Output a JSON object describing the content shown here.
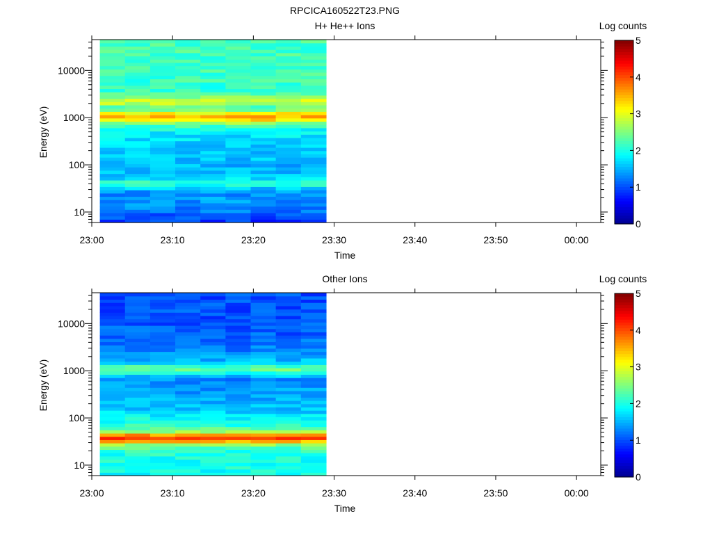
{
  "page_title": "RPCICA160522T23.PNG",
  "colors": {
    "colormap": [
      "#00008f",
      "#0000ff",
      "#007fff",
      "#00ffff",
      "#7fff7f",
      "#ffff00",
      "#ff7f00",
      "#ff0000",
      "#7f0000"
    ],
    "axis": "#000000",
    "background": "#ffffff"
  },
  "chart_data": [
    {
      "type": "heatmap",
      "title": "H+ He++ Ions",
      "xlabel": "Time",
      "ylabel": "Energy (eV)",
      "y_scale": "log",
      "ylim": [
        6,
        45000
      ],
      "x_ticks": [
        "23:00",
        "23:10",
        "23:20",
        "23:30",
        "23:40",
        "23:50",
        "00:00"
      ],
      "xlim_minutes": [
        0,
        63
      ],
      "y_ticks": [
        {
          "value": 10,
          "label": "10"
        },
        {
          "value": 100,
          "label": "100"
        },
        {
          "value": 1000,
          "label": "1000"
        },
        {
          "value": 10000,
          "label": "10000"
        }
      ],
      "colorbar": {
        "label": "Log counts",
        "range": [
          0,
          5
        ],
        "ticks": [
          "0",
          "1",
          "2",
          "3",
          "4",
          "5"
        ]
      },
      "data_time_range_minutes": [
        1,
        29
      ],
      "time_bins": 9,
      "energy_profile": [
        {
          "energy": 7,
          "value": 0.9
        },
        {
          "energy": 10,
          "value": 1.2
        },
        {
          "energy": 14,
          "value": 1.3
        },
        {
          "energy": 20,
          "value": 1.4
        },
        {
          "energy": 25,
          "value": 1.3
        },
        {
          "energy": 30,
          "value": 1.5
        },
        {
          "energy": 38,
          "value": 2.0
        },
        {
          "energy": 42,
          "value": 2.2
        },
        {
          "energy": 48,
          "value": 1.8
        },
        {
          "energy": 60,
          "value": 1.6
        },
        {
          "energy": 90,
          "value": 1.5
        },
        {
          "energy": 140,
          "value": 1.6
        },
        {
          "energy": 200,
          "value": 1.6
        },
        {
          "energy": 300,
          "value": 1.7
        },
        {
          "energy": 500,
          "value": 1.8
        },
        {
          "energy": 700,
          "value": 2.2
        },
        {
          "energy": 850,
          "value": 3.0
        },
        {
          "energy": 1000,
          "value": 3.6
        },
        {
          "energy": 1200,
          "value": 3.3
        },
        {
          "energy": 1500,
          "value": 2.4
        },
        {
          "energy": 1800,
          "value": 2.3
        },
        {
          "energy": 2200,
          "value": 3.1
        },
        {
          "energy": 2700,
          "value": 2.5
        },
        {
          "energy": 4000,
          "value": 2.1
        },
        {
          "energy": 10000,
          "value": 2.2
        },
        {
          "energy": 30000,
          "value": 2.2
        },
        {
          "energy": 45000,
          "value": 2.2
        }
      ]
    },
    {
      "type": "heatmap",
      "title": "Other Ions",
      "xlabel": "Time",
      "ylabel": "Energy (eV)",
      "y_scale": "log",
      "ylim": [
        6,
        45000
      ],
      "x_ticks": [
        "23:00",
        "23:10",
        "23:20",
        "23:30",
        "23:40",
        "23:50",
        "00:00"
      ],
      "xlim_minutes": [
        0,
        63
      ],
      "y_ticks": [
        {
          "value": 10,
          "label": "10"
        },
        {
          "value": 100,
          "label": "100"
        },
        {
          "value": 1000,
          "label": "1000"
        },
        {
          "value": 10000,
          "label": "10000"
        }
      ],
      "colorbar": {
        "label": "Log counts",
        "range": [
          0,
          5
        ],
        "ticks": [
          "0",
          "1",
          "2",
          "3",
          "4",
          "5"
        ]
      },
      "data_time_range_minutes": [
        1,
        29
      ],
      "time_bins": 9,
      "energy_profile": [
        {
          "energy": 7,
          "value": 1.9
        },
        {
          "energy": 10,
          "value": 2.0
        },
        {
          "energy": 15,
          "value": 2.0
        },
        {
          "energy": 22,
          "value": 2.1
        },
        {
          "energy": 28,
          "value": 2.7
        },
        {
          "energy": 33,
          "value": 3.7
        },
        {
          "energy": 38,
          "value": 4.2
        },
        {
          "energy": 44,
          "value": 3.6
        },
        {
          "energy": 52,
          "value": 2.6
        },
        {
          "energy": 70,
          "value": 2.1
        },
        {
          "energy": 100,
          "value": 1.9
        },
        {
          "energy": 150,
          "value": 1.6
        },
        {
          "energy": 250,
          "value": 1.5
        },
        {
          "energy": 400,
          "value": 1.4
        },
        {
          "energy": 650,
          "value": 1.3
        },
        {
          "energy": 850,
          "value": 1.7
        },
        {
          "energy": 1000,
          "value": 2.4
        },
        {
          "energy": 1200,
          "value": 2.3
        },
        {
          "energy": 1500,
          "value": 1.6
        },
        {
          "energy": 2500,
          "value": 1.3
        },
        {
          "energy": 5000,
          "value": 1.1
        },
        {
          "energy": 10000,
          "value": 1.05
        },
        {
          "energy": 25000,
          "value": 1.0
        },
        {
          "energy": 45000,
          "value": 1.0
        }
      ]
    }
  ]
}
